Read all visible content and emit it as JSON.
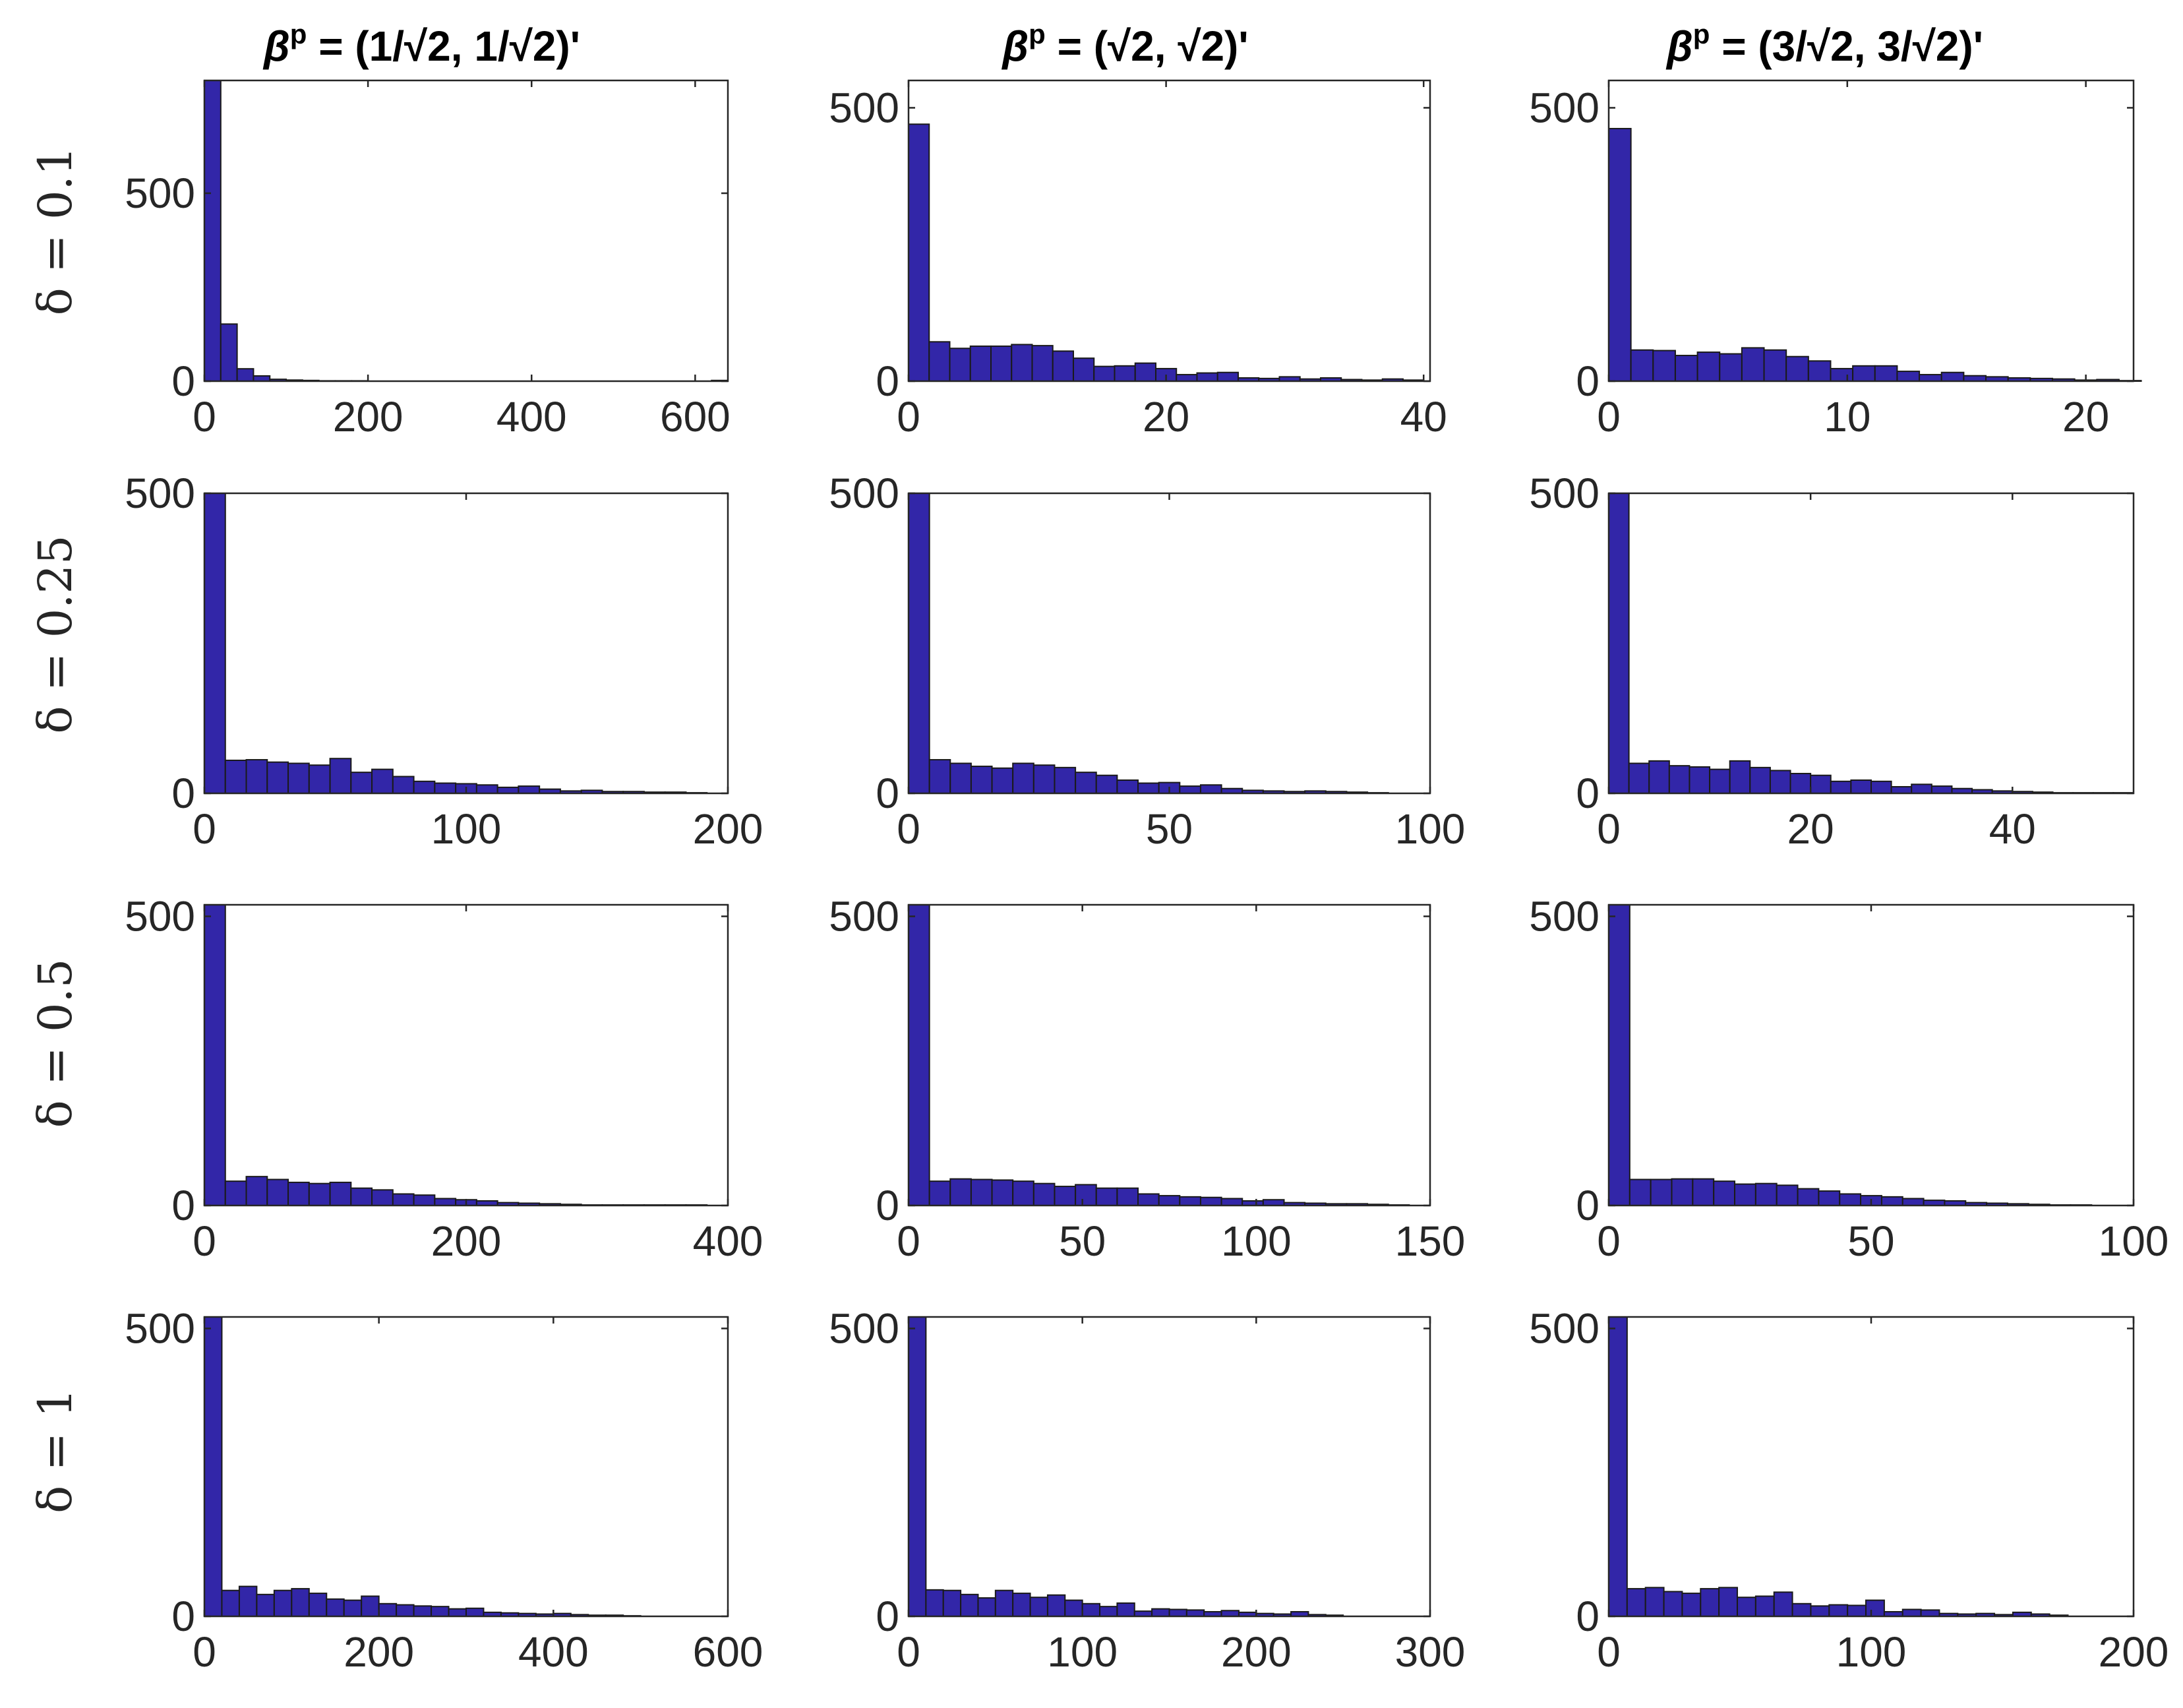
{
  "figure": {
    "bar_color": "#3226A8",
    "edge_color": "#1A1A1A",
    "axis_color": "#262626",
    "column_titles": [
      {
        "greek": "β",
        "sup": "p",
        "rest": " = (1/√2, 1/√2)'"
      },
      {
        "greek": "β",
        "sup": "p",
        "rest": " = (√2, √2)'"
      },
      {
        "greek": "β",
        "sup": "p",
        "rest": " = (3/√2, 3/√2)'"
      }
    ],
    "row_labels": [
      "δ = 0.1",
      "δ = 0.25",
      "δ = 0.5",
      "δ = 1"
    ]
  },
  "chart_data": [
    {
      "type": "bar",
      "row": 0,
      "col": 0,
      "title": "",
      "xlabel": "",
      "ylabel": "",
      "xlim": [
        0,
        640
      ],
      "ylim": [
        0,
        800
      ],
      "xticks": [
        0,
        200,
        400,
        600
      ],
      "yticks": [
        0,
        500
      ],
      "bin_width": 20,
      "values": [
        800,
        152,
        33,
        14,
        5,
        3,
        2,
        1,
        1,
        1,
        0,
        0,
        0,
        0,
        0,
        0,
        0,
        0,
        0,
        0,
        0,
        0,
        0,
        0,
        0,
        0,
        0,
        0,
        0,
        0,
        0,
        2
      ]
    },
    {
      "type": "bar",
      "row": 0,
      "col": 1,
      "title": "",
      "xlabel": "",
      "ylabel": "",
      "xlim": [
        0,
        40.5
      ],
      "ylim": [
        0,
        550
      ],
      "xticks": [
        0,
        20,
        40
      ],
      "yticks": [
        0,
        500
      ],
      "bin_width": 1.6,
      "values": [
        470,
        72,
        60,
        64,
        64,
        67,
        65,
        55,
        42,
        27,
        28,
        33,
        23,
        12,
        15,
        16,
        6,
        5,
        8,
        4,
        6,
        3,
        2,
        4,
        2
      ]
    },
    {
      "type": "bar",
      "row": 0,
      "col": 2,
      "title": "",
      "xlabel": "",
      "ylabel": "",
      "xlim": [
        0,
        22
      ],
      "ylim": [
        0,
        550
      ],
      "xticks": [
        0,
        10,
        20
      ],
      "yticks": [
        0,
        500
      ],
      "bin_width": 0.93,
      "values": [
        462,
        57,
        56,
        47,
        53,
        50,
        61,
        57,
        45,
        37,
        23,
        28,
        28,
        18,
        12,
        16,
        10,
        8,
        6,
        5,
        4,
        2,
        3,
        1
      ]
    },
    {
      "type": "bar",
      "row": 1,
      "col": 0,
      "title": "",
      "xlabel": "",
      "ylabel": "",
      "xlim": [
        0,
        200
      ],
      "ylim": [
        0,
        500
      ],
      "xticks": [
        0,
        100,
        200
      ],
      "yticks": [
        0,
        500
      ],
      "bin_width": 8,
      "values": [
        500,
        55,
        56,
        52,
        50,
        47,
        58,
        35,
        40,
        28,
        20,
        17,
        16,
        14,
        10,
        12,
        7,
        4,
        5,
        3,
        3,
        2,
        2,
        1
      ]
    },
    {
      "type": "bar",
      "row": 1,
      "col": 1,
      "title": "",
      "xlabel": "",
      "ylabel": "",
      "xlim": [
        0,
        100
      ],
      "ylim": [
        0,
        500
      ],
      "xticks": [
        0,
        50,
        100
      ],
      "yticks": [
        0,
        500
      ],
      "bin_width": 4,
      "values": [
        500,
        56,
        50,
        45,
        42,
        50,
        47,
        43,
        35,
        30,
        22,
        17,
        18,
        12,
        14,
        8,
        5,
        4,
        3,
        4,
        3,
        2,
        1
      ]
    },
    {
      "type": "bar",
      "row": 1,
      "col": 2,
      "title": "",
      "xlabel": "",
      "ylabel": "",
      "xlim": [
        0,
        52
      ],
      "ylim": [
        0,
        500
      ],
      "xticks": [
        0,
        20,
        40
      ],
      "yticks": [
        0,
        500
      ],
      "bin_width": 2,
      "values": [
        500,
        50,
        54,
        46,
        44,
        40,
        54,
        43,
        38,
        33,
        30,
        20,
        22,
        20,
        11,
        15,
        12,
        8,
        6,
        4,
        3,
        2,
        1,
        1,
        1,
        1
      ]
    },
    {
      "type": "bar",
      "row": 2,
      "col": 0,
      "title": "",
      "xlabel": "",
      "ylabel": "",
      "xlim": [
        0,
        400
      ],
      "ylim": [
        0,
        520
      ],
      "xticks": [
        0,
        200,
        400
      ],
      "yticks": [
        0,
        500
      ],
      "bin_width": 16,
      "values": [
        520,
        42,
        50,
        45,
        40,
        38,
        40,
        30,
        27,
        20,
        18,
        12,
        10,
        8,
        5,
        4,
        3,
        2,
        1,
        1,
        1,
        1,
        1,
        1
      ]
    },
    {
      "type": "bar",
      "row": 2,
      "col": 1,
      "title": "",
      "xlabel": "",
      "ylabel": "",
      "xlim": [
        0,
        150
      ],
      "ylim": [
        0,
        520
      ],
      "xticks": [
        0,
        50,
        100,
        150
      ],
      "yticks": [
        0,
        500
      ],
      "bin_width": 6,
      "values": [
        520,
        42,
        46,
        45,
        44,
        42,
        38,
        33,
        36,
        30,
        30,
        20,
        17,
        15,
        14,
        12,
        8,
        10,
        5,
        4,
        3,
        3,
        2,
        1
      ]
    },
    {
      "type": "bar",
      "row": 2,
      "col": 2,
      "title": "",
      "xlabel": "",
      "ylabel": "",
      "xlim": [
        0,
        100
      ],
      "ylim": [
        0,
        520
      ],
      "xticks": [
        0,
        50,
        100
      ],
      "yticks": [
        0,
        500
      ],
      "bin_width": 4,
      "values": [
        520,
        45,
        45,
        46,
        46,
        42,
        37,
        38,
        35,
        29,
        25,
        20,
        17,
        15,
        12,
        9,
        8,
        5,
        4,
        3,
        2,
        1,
        1
      ]
    },
    {
      "type": "bar",
      "row": 3,
      "col": 0,
      "title": "",
      "xlabel": "",
      "ylabel": "",
      "xlim": [
        0,
        600
      ],
      "ylim": [
        0,
        520
      ],
      "xticks": [
        0,
        200,
        400,
        600
      ],
      "yticks": [
        0,
        500
      ],
      "bin_width": 20,
      "values": [
        520,
        45,
        52,
        38,
        45,
        48,
        40,
        30,
        28,
        35,
        22,
        20,
        18,
        17,
        13,
        14,
        7,
        6,
        5,
        4,
        5,
        3,
        2,
        2,
        1
      ]
    },
    {
      "type": "bar",
      "row": 3,
      "col": 1,
      "title": "",
      "xlabel": "",
      "ylabel": "",
      "xlim": [
        0,
        300
      ],
      "ylim": [
        0,
        520
      ],
      "xticks": [
        0,
        100,
        200,
        300
      ],
      "yticks": [
        0,
        500
      ],
      "bin_width": 10,
      "values": [
        520,
        46,
        45,
        38,
        32,
        45,
        40,
        33,
        37,
        28,
        22,
        17,
        23,
        9,
        13,
        12,
        11,
        8,
        10,
        7,
        5,
        4,
        8,
        3,
        2
      ]
    },
    {
      "type": "bar",
      "row": 3,
      "col": 2,
      "title": "",
      "xlabel": "",
      "ylabel": "",
      "xlim": [
        0,
        200
      ],
      "ylim": [
        0,
        520
      ],
      "xticks": [
        0,
        100,
        200
      ],
      "yticks": [
        0,
        500
      ],
      "bin_width": 7,
      "values": [
        520,
        48,
        50,
        43,
        40,
        48,
        50,
        33,
        35,
        42,
        22,
        18,
        20,
        19,
        28,
        8,
        12,
        11,
        5,
        4,
        5,
        3,
        7,
        4,
        2
      ]
    }
  ]
}
